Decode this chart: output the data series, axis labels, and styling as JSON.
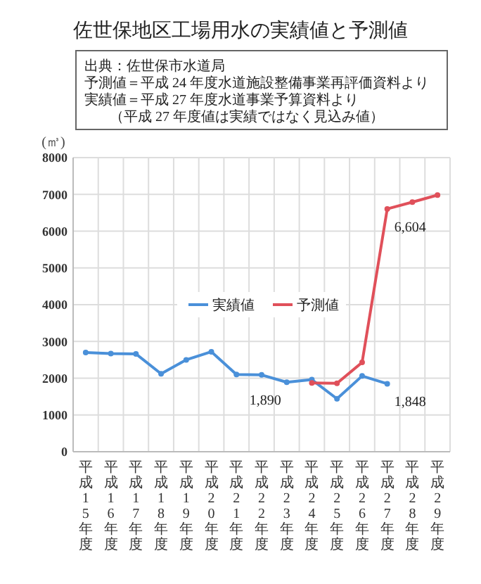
{
  "chart_data": {
    "type": "line",
    "title": "佐世保地区工場用水の実績値と予測値",
    "ylabel": "(㎥)",
    "categories": [
      "平成15年度",
      "平成16年度",
      "平成17年度",
      "平成18年度",
      "平成19年度",
      "平成20年度",
      "平成21年度",
      "平成22年度",
      "平成23年度",
      "平成24年度",
      "平成25年度",
      "平成26年度",
      "平成27年度",
      "平成28年度",
      "平成29年度"
    ],
    "series": [
      {
        "name": "実績値",
        "color": "#4a90d9",
        "values": [
          2700,
          2670,
          2660,
          2120,
          2500,
          2720,
          2100,
          2090,
          1890,
          1960,
          1440,
          2060,
          1848,
          null,
          null
        ]
      },
      {
        "name": "予測値",
        "color": "#e0505a",
        "values": [
          null,
          null,
          null,
          null,
          null,
          null,
          null,
          null,
          null,
          1870,
          1860,
          2430,
          6604,
          6790,
          6980
        ]
      }
    ],
    "ylim": [
      0,
      8000
    ],
    "yticks": [
      0,
      1000,
      2000,
      3000,
      4000,
      5000,
      6000,
      7000,
      8000
    ],
    "grid": true,
    "legend": "center",
    "marker": "circle",
    "annotations": [
      "出典：佐世保市水道局",
      "予測値＝平成 24 年度水道施設整備事業再評価資料より",
      "実績値＝平成 27 年度水道事業予算資料より",
      "（平成 27 年度値は実績ではなく見込み値）",
      {
        "text": "1,890",
        "x": "平成23年度",
        "y": 1890
      },
      {
        "text": "6,604",
        "x": "平成27年度",
        "y": 6604
      },
      {
        "text": "1,848",
        "x": "平成27年度",
        "y": 1848
      }
    ]
  }
}
